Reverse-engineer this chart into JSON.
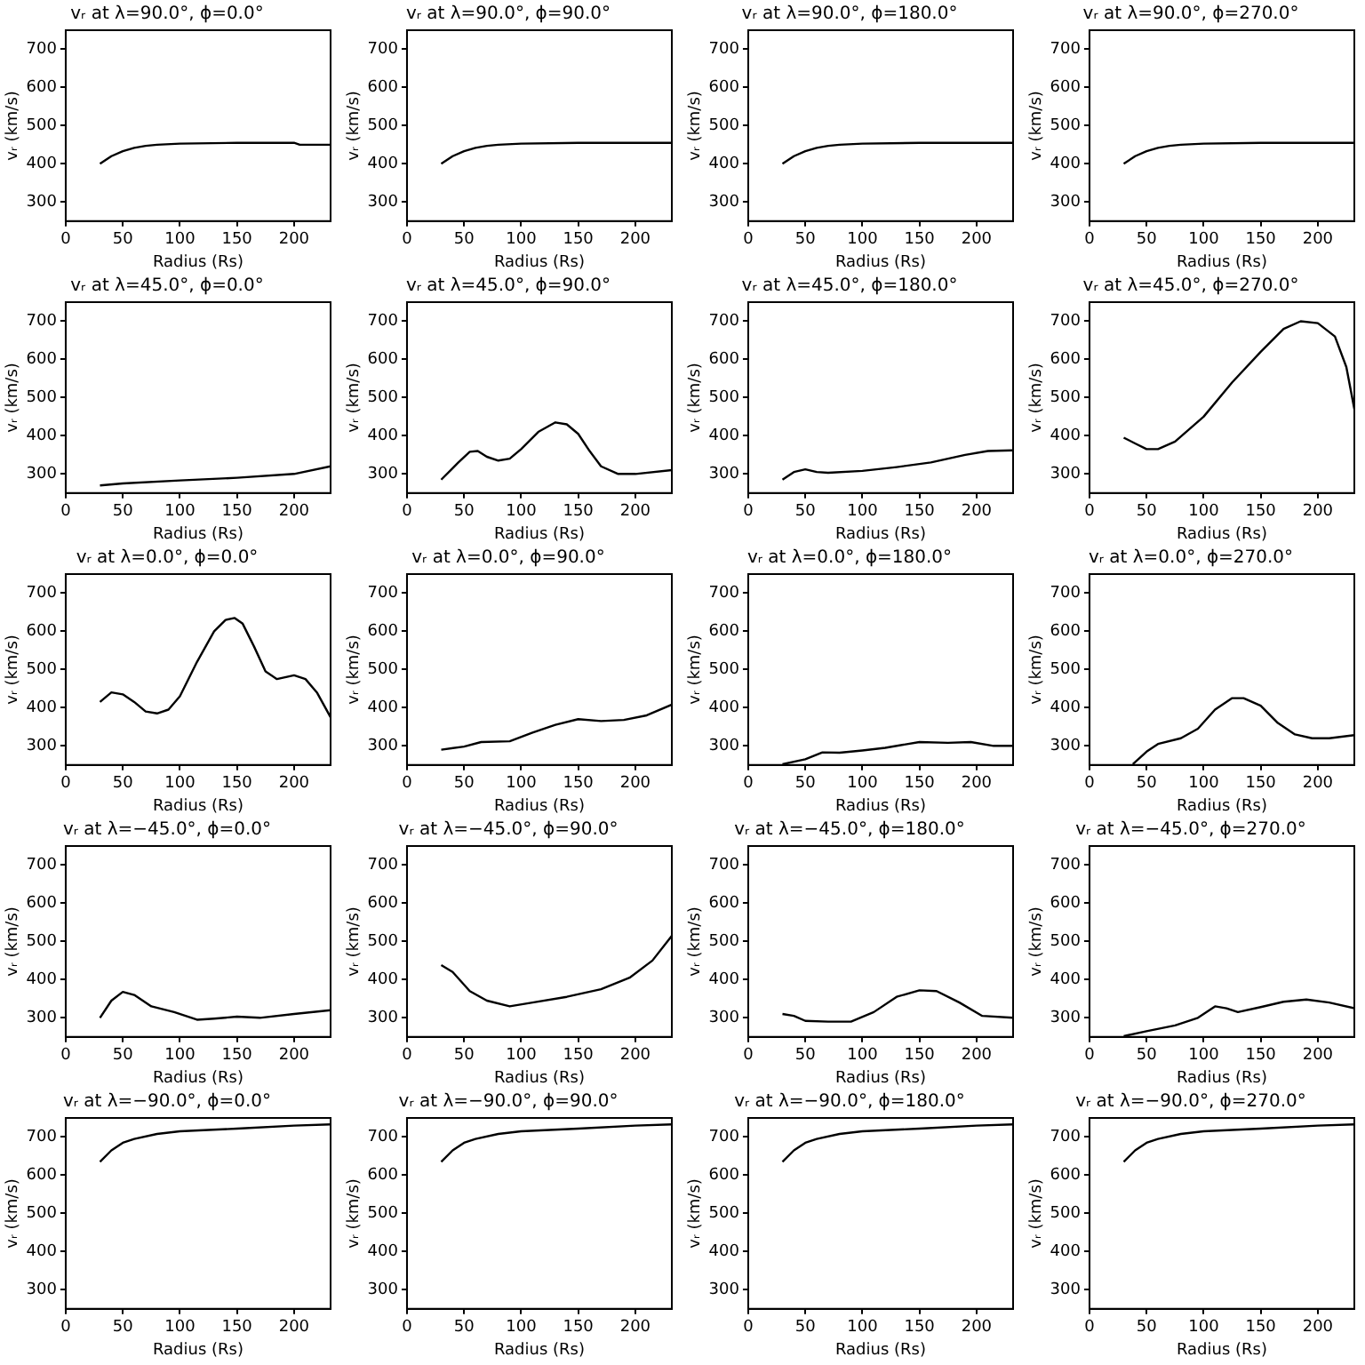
{
  "chart_data": [
    {
      "type": "line",
      "title": "vᵣ at λ=90.0°, ϕ=0.0°",
      "xlabel": "Radius (Rs)",
      "ylabel": "vᵣ (km/s)",
      "color": "#000000",
      "x": [
        30,
        40,
        50,
        60,
        70,
        80,
        100,
        150,
        200,
        205,
        232
      ],
      "values": [
        400,
        420,
        433,
        442,
        447,
        450,
        453,
        455,
        455,
        450,
        450
      ],
      "xlim": [
        0,
        232
      ],
      "ylim": [
        250,
        750
      ],
      "xticks": [
        0,
        50,
        100,
        150,
        200
      ],
      "yticks": [
        300,
        400,
        500,
        600,
        700
      ]
    },
    {
      "type": "line",
      "title": "vᵣ at λ=90.0°, ϕ=90.0°",
      "xlabel": "Radius (Rs)",
      "ylabel": "vᵣ (km/s)",
      "color": "#000000",
      "x": [
        30,
        40,
        50,
        60,
        70,
        80,
        100,
        150,
        200,
        232
      ],
      "values": [
        400,
        420,
        433,
        442,
        447,
        450,
        453,
        455,
        455,
        455
      ],
      "xlim": [
        0,
        232
      ],
      "ylim": [
        250,
        750
      ],
      "xticks": [
        0,
        50,
        100,
        150,
        200
      ],
      "yticks": [
        300,
        400,
        500,
        600,
        700
      ]
    },
    {
      "type": "line",
      "title": "vᵣ at λ=90.0°, ϕ=180.0°",
      "xlabel": "Radius (Rs)",
      "ylabel": "vᵣ (km/s)",
      "color": "#000000",
      "x": [
        30,
        40,
        50,
        60,
        70,
        80,
        100,
        150,
        200,
        232
      ],
      "values": [
        400,
        420,
        433,
        442,
        447,
        450,
        453,
        455,
        455,
        455
      ],
      "xlim": [
        0,
        232
      ],
      "ylim": [
        250,
        750
      ],
      "xticks": [
        0,
        50,
        100,
        150,
        200
      ],
      "yticks": [
        300,
        400,
        500,
        600,
        700
      ]
    },
    {
      "type": "line",
      "title": "vᵣ at λ=90.0°, ϕ=270.0°",
      "xlabel": "Radius (Rs)",
      "ylabel": "vᵣ (km/s)",
      "color": "#000000",
      "x": [
        30,
        40,
        50,
        60,
        70,
        80,
        100,
        150,
        200,
        232
      ],
      "values": [
        400,
        420,
        433,
        442,
        447,
        450,
        453,
        455,
        455,
        455
      ],
      "xlim": [
        0,
        232
      ],
      "ylim": [
        250,
        750
      ],
      "xticks": [
        0,
        50,
        100,
        150,
        200
      ],
      "yticks": [
        300,
        400,
        500,
        600,
        700
      ]
    },
    {
      "type": "line",
      "title": "vᵣ at λ=45.0°, ϕ=0.0°",
      "xlabel": "Radius (Rs)",
      "ylabel": "vᵣ (km/s)",
      "color": "#000000",
      "x": [
        30,
        50,
        100,
        150,
        200,
        232
      ],
      "values": [
        270,
        275,
        283,
        290,
        300,
        320
      ],
      "xlim": [
        0,
        232
      ],
      "ylim": [
        250,
        750
      ],
      "xticks": [
        0,
        50,
        100,
        150,
        200
      ],
      "yticks": [
        300,
        400,
        500,
        600,
        700
      ]
    },
    {
      "type": "line",
      "title": "vᵣ at λ=45.0°, ϕ=90.0°",
      "xlabel": "Radius (Rs)",
      "ylabel": "vᵣ (km/s)",
      "color": "#000000",
      "x": [
        30,
        45,
        55,
        62,
        70,
        80,
        90,
        100,
        115,
        130,
        140,
        150,
        160,
        170,
        185,
        200,
        232
      ],
      "values": [
        285,
        330,
        358,
        360,
        345,
        335,
        340,
        365,
        410,
        435,
        430,
        405,
        360,
        320,
        300,
        300,
        310
      ],
      "xlim": [
        0,
        232
      ],
      "ylim": [
        250,
        750
      ],
      "xticks": [
        0,
        50,
        100,
        150,
        200
      ],
      "yticks": [
        300,
        400,
        500,
        600,
        700
      ]
    },
    {
      "type": "line",
      "title": "vᵣ at λ=45.0°, ϕ=180.0°",
      "xlabel": "Radius (Rs)",
      "ylabel": "vᵣ (km/s)",
      "color": "#000000",
      "x": [
        30,
        40,
        50,
        60,
        70,
        100,
        130,
        160,
        190,
        210,
        232
      ],
      "values": [
        285,
        305,
        312,
        305,
        303,
        308,
        318,
        330,
        350,
        360,
        362
      ],
      "xlim": [
        0,
        232
      ],
      "ylim": [
        250,
        750
      ],
      "xticks": [
        0,
        50,
        100,
        150,
        200
      ],
      "yticks": [
        300,
        400,
        500,
        600,
        700
      ]
    },
    {
      "type": "line",
      "title": "vᵣ at λ=45.0°, ϕ=270.0°",
      "xlabel": "Radius (Rs)",
      "ylabel": "vᵣ (km/s)",
      "color": "#000000",
      "x": [
        30,
        40,
        50,
        60,
        75,
        100,
        125,
        150,
        170,
        185,
        200,
        215,
        225,
        232
      ],
      "values": [
        395,
        380,
        365,
        365,
        385,
        450,
        540,
        620,
        680,
        700,
        695,
        660,
        580,
        470
      ],
      "xlim": [
        0,
        232
      ],
      "ylim": [
        250,
        750
      ],
      "xticks": [
        0,
        50,
        100,
        150,
        200
      ],
      "yticks": [
        300,
        400,
        500,
        600,
        700
      ]
    },
    {
      "type": "line",
      "title": "vᵣ at λ=0.0°, ϕ=0.0°",
      "xlabel": "Radius (Rs)",
      "ylabel": "vᵣ (km/s)",
      "color": "#000000",
      "x": [
        30,
        40,
        50,
        60,
        70,
        80,
        90,
        100,
        115,
        130,
        140,
        148,
        155,
        165,
        175,
        185,
        200,
        210,
        220,
        232
      ],
      "values": [
        415,
        440,
        435,
        415,
        390,
        385,
        395,
        430,
        520,
        600,
        630,
        635,
        620,
        560,
        495,
        475,
        485,
        475,
        440,
        375
      ],
      "xlim": [
        0,
        232
      ],
      "ylim": [
        250,
        750
      ],
      "xticks": [
        0,
        50,
        100,
        150,
        200
      ],
      "yticks": [
        300,
        400,
        500,
        600,
        700
      ]
    },
    {
      "type": "line",
      "title": "vᵣ at λ=0.0°, ϕ=90.0°",
      "xlabel": "Radius (Rs)",
      "ylabel": "vᵣ (km/s)",
      "color": "#000000",
      "x": [
        30,
        50,
        65,
        90,
        110,
        130,
        150,
        170,
        190,
        210,
        232
      ],
      "values": [
        290,
        298,
        310,
        312,
        335,
        355,
        370,
        365,
        368,
        380,
        408
      ],
      "xlim": [
        0,
        232
      ],
      "ylim": [
        250,
        750
      ],
      "xticks": [
        0,
        50,
        100,
        150,
        200
      ],
      "yticks": [
        300,
        400,
        500,
        600,
        700
      ]
    },
    {
      "type": "line",
      "title": "vᵣ at λ=0.0°, ϕ=180.0°",
      "xlabel": "Radius (Rs)",
      "ylabel": "vᵣ (km/s)",
      "color": "#000000",
      "x": [
        30,
        50,
        65,
        80,
        100,
        120,
        150,
        175,
        195,
        215,
        232
      ],
      "values": [
        252,
        265,
        283,
        282,
        288,
        295,
        310,
        308,
        310,
        300,
        300
      ],
      "xlim": [
        0,
        232
      ],
      "ylim": [
        250,
        750
      ],
      "xticks": [
        0,
        50,
        100,
        150,
        200
      ],
      "yticks": [
        300,
        400,
        500,
        600,
        700
      ]
    },
    {
      "type": "line",
      "title": "vᵣ at λ=0.0°, ϕ=270.0°",
      "xlabel": "Radius (Rs)",
      "ylabel": "vᵣ (km/s)",
      "color": "#000000",
      "x": [
        38,
        50,
        60,
        80,
        95,
        110,
        125,
        135,
        150,
        165,
        180,
        195,
        210,
        232
      ],
      "values": [
        252,
        285,
        305,
        320,
        345,
        395,
        425,
        425,
        405,
        360,
        330,
        320,
        320,
        328
      ],
      "xlim": [
        0,
        232
      ],
      "ylim": [
        250,
        750
      ],
      "xticks": [
        0,
        50,
        100,
        150,
        200
      ],
      "yticks": [
        300,
        400,
        500,
        600,
        700
      ]
    },
    {
      "type": "line",
      "title": "vᵣ at λ=−45.0°, ϕ=0.0°",
      "xlabel": "Radius (Rs)",
      "ylabel": "vᵣ (km/s)",
      "color": "#000000",
      "x": [
        30,
        40,
        50,
        60,
        75,
        95,
        115,
        130,
        150,
        170,
        200,
        232
      ],
      "values": [
        300,
        345,
        368,
        360,
        330,
        315,
        295,
        298,
        303,
        300,
        310,
        320
      ],
      "xlim": [
        0,
        232
      ],
      "ylim": [
        250,
        750
      ],
      "xticks": [
        0,
        50,
        100,
        150,
        200
      ],
      "yticks": [
        300,
        400,
        500,
        600,
        700
      ]
    },
    {
      "type": "line",
      "title": "vᵣ at λ=−45.0°, ϕ=90.0°",
      "xlabel": "Radius (Rs)",
      "ylabel": "vᵣ (km/s)",
      "color": "#000000",
      "x": [
        30,
        40,
        55,
        70,
        90,
        110,
        140,
        170,
        195,
        215,
        232
      ],
      "values": [
        438,
        420,
        370,
        345,
        330,
        340,
        355,
        375,
        405,
        450,
        515
      ],
      "xlim": [
        0,
        232
      ],
      "ylim": [
        250,
        750
      ],
      "xticks": [
        0,
        50,
        100,
        150,
        200
      ],
      "yticks": [
        300,
        400,
        500,
        600,
        700
      ]
    },
    {
      "type": "line",
      "title": "vᵣ at λ=−45.0°, ϕ=180.0°",
      "xlabel": "Radius (Rs)",
      "ylabel": "vᵣ (km/s)",
      "color": "#000000",
      "x": [
        30,
        40,
        50,
        70,
        90,
        110,
        130,
        150,
        165,
        185,
        205,
        232
      ],
      "values": [
        310,
        305,
        292,
        290,
        290,
        315,
        355,
        372,
        370,
        340,
        305,
        300
      ],
      "xlim": [
        0,
        232
      ],
      "ylim": [
        250,
        750
      ],
      "xticks": [
        0,
        50,
        100,
        150,
        200
      ],
      "yticks": [
        300,
        400,
        500,
        600,
        700
      ]
    },
    {
      "type": "line",
      "title": "vᵣ at λ=−45.0°, ϕ=270.0°",
      "xlabel": "Radius (Rs)",
      "ylabel": "vᵣ (km/s)",
      "color": "#000000",
      "x": [
        30,
        50,
        75,
        95,
        110,
        120,
        130,
        150,
        170,
        190,
        210,
        232
      ],
      "values": [
        252,
        265,
        280,
        300,
        330,
        325,
        315,
        328,
        342,
        348,
        340,
        325
      ],
      "xlim": [
        0,
        232
      ],
      "ylim": [
        250,
        750
      ],
      "xticks": [
        0,
        50,
        100,
        150,
        200
      ],
      "yticks": [
        300,
        400,
        500,
        600,
        700
      ]
    },
    {
      "type": "line",
      "title": "vᵣ at λ=−90.0°, ϕ=0.0°",
      "xlabel": "Radius (Rs)",
      "ylabel": "vᵣ (km/s)",
      "color": "#000000",
      "x": [
        30,
        40,
        50,
        60,
        80,
        100,
        150,
        200,
        232
      ],
      "values": [
        635,
        665,
        685,
        695,
        708,
        715,
        722,
        730,
        733
      ],
      "xlim": [
        0,
        232
      ],
      "ylim": [
        250,
        750
      ],
      "xticks": [
        0,
        50,
        100,
        150,
        200
      ],
      "yticks": [
        300,
        400,
        500,
        600,
        700
      ]
    },
    {
      "type": "line",
      "title": "vᵣ at λ=−90.0°, ϕ=90.0°",
      "xlabel": "Radius (Rs)",
      "ylabel": "vᵣ (km/s)",
      "color": "#000000",
      "x": [
        30,
        40,
        50,
        60,
        80,
        100,
        150,
        200,
        232
      ],
      "values": [
        635,
        665,
        685,
        695,
        708,
        715,
        722,
        730,
        733
      ],
      "xlim": [
        0,
        232
      ],
      "ylim": [
        250,
        750
      ],
      "xticks": [
        0,
        50,
        100,
        150,
        200
      ],
      "yticks": [
        300,
        400,
        500,
        600,
        700
      ]
    },
    {
      "type": "line",
      "title": "vᵣ at λ=−90.0°, ϕ=180.0°",
      "xlabel": "Radius (Rs)",
      "ylabel": "vᵣ (km/s)",
      "color": "#000000",
      "x": [
        30,
        40,
        50,
        60,
        80,
        100,
        150,
        200,
        232
      ],
      "values": [
        635,
        665,
        685,
        695,
        708,
        715,
        722,
        730,
        733
      ],
      "xlim": [
        0,
        232
      ],
      "ylim": [
        250,
        750
      ],
      "xticks": [
        0,
        50,
        100,
        150,
        200
      ],
      "yticks": [
        300,
        400,
        500,
        600,
        700
      ]
    },
    {
      "type": "line",
      "title": "vᵣ at λ=−90.0°, ϕ=270.0°",
      "xlabel": "Radius (Rs)",
      "ylabel": "vᵣ (km/s)",
      "color": "#000000",
      "x": [
        30,
        40,
        50,
        60,
        80,
        100,
        150,
        200,
        232
      ],
      "values": [
        635,
        665,
        685,
        695,
        708,
        715,
        722,
        730,
        733
      ],
      "xlim": [
        0,
        232
      ],
      "ylim": [
        250,
        750
      ],
      "xticks": [
        0,
        50,
        100,
        150,
        200
      ],
      "yticks": [
        300,
        400,
        500,
        600,
        700
      ]
    }
  ]
}
